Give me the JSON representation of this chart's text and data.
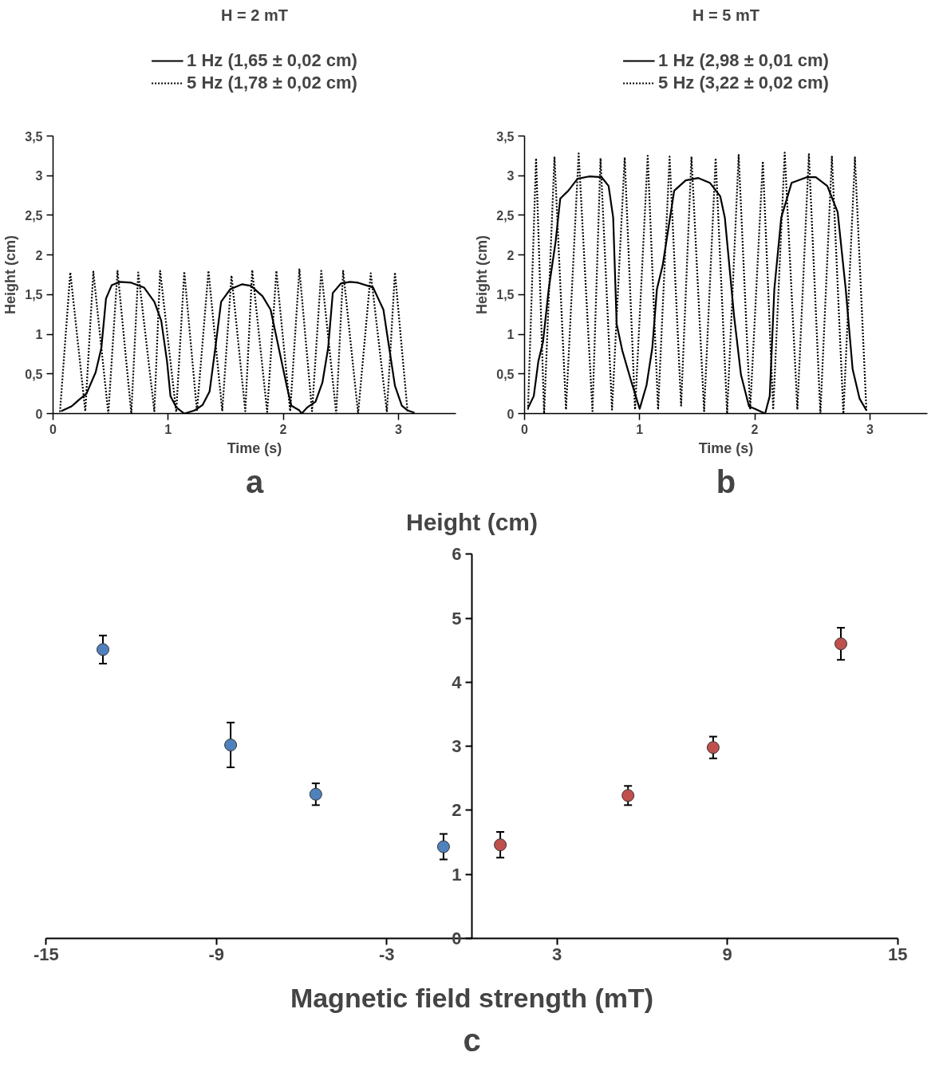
{
  "chart_data": [
    {
      "type": "line",
      "title": "H = 2 mT",
      "xlabel": "Time (s)",
      "ylabel": "Height (cm)",
      "legend": "top",
      "annotations": [
        "a"
      ],
      "xlim": [
        0,
        3.5
      ],
      "ylim": [
        0,
        3.5
      ],
      "xticks": [
        0,
        1,
        2,
        3
      ],
      "yticks": [
        0,
        {
          "value": 0.5,
          "label": "0,5"
        },
        1,
        {
          "value": 1.5,
          "label": "1,5"
        },
        2,
        {
          "value": 2.5,
          "label": "2,5"
        },
        3,
        {
          "value": 3.5,
          "label": "3,5"
        }
      ],
      "series": [
        {
          "name": "1 Hz (1,65 ± 0,02 cm)",
          "color": "#000000",
          "line_style": "solid",
          "x": [
            0.07,
            0.16,
            0.23,
            0.29,
            0.37,
            0.42,
            0.46,
            0.51,
            0.58,
            0.68,
            0.79,
            0.88,
            0.94,
            0.99,
            1.02,
            1.07,
            1.14,
            1.23,
            1.3,
            1.36,
            1.41,
            1.46,
            1.54,
            1.64,
            1.72,
            1.82,
            1.89,
            1.95,
            2.03,
            2.07,
            2.14,
            2.16,
            2.21,
            2.28,
            2.34,
            2.39,
            2.43,
            2.5,
            2.58,
            2.65,
            2.78,
            2.87,
            2.92,
            2.97,
            3.03,
            3.08,
            3.14
          ],
          "values": [
            0.03,
            0.09,
            0.18,
            0.25,
            0.52,
            0.83,
            1.45,
            1.62,
            1.66,
            1.65,
            1.59,
            1.41,
            1.17,
            0.66,
            0.22,
            0.08,
            0,
            0.04,
            0.11,
            0.28,
            0.83,
            1.41,
            1.57,
            1.63,
            1.61,
            1.48,
            1.31,
            0.9,
            0.35,
            0.1,
            0.04,
            0,
            0.08,
            0.15,
            0.39,
            0.83,
            1.52,
            1.64,
            1.66,
            1.65,
            1.59,
            1.31,
            0.83,
            0.35,
            0.1,
            0.04,
            0.01
          ]
        },
        {
          "name": "5 Hz (1,78 ± 0,02 cm)",
          "color": "#000000",
          "line_style": "dotted",
          "x": [
            0.06,
            0.15,
            0.28,
            0.35,
            0.48,
            0.56,
            0.68,
            0.74,
            0.88,
            0.93,
            1.07,
            1.14,
            1.25,
            1.35,
            1.47,
            1.55,
            1.67,
            1.73,
            1.86,
            1.94,
            2.06,
            2.14,
            2.25,
            2.33,
            2.46,
            2.52,
            2.65,
            2.76,
            2.9,
            2.97,
            3.08
          ],
          "values": [
            0.02,
            1.78,
            0.03,
            1.79,
            0,
            1.8,
            0,
            1.78,
            0.03,
            1.8,
            0.02,
            1.79,
            0.03,
            1.8,
            0.03,
            1.74,
            0.03,
            1.81,
            0.02,
            1.8,
            0.03,
            1.82,
            0.03,
            1.8,
            0,
            1.8,
            0,
            1.77,
            0.02,
            1.78,
            0.02
          ]
        }
      ]
    },
    {
      "type": "line",
      "title": "H = 5 mT",
      "xlabel": "Time (s)",
      "ylabel": "Height (cm)",
      "legend": "top",
      "annotations": [
        "b"
      ],
      "xlim": [
        0,
        3.5
      ],
      "ylim": [
        0,
        3.5
      ],
      "xticks": [
        0,
        1,
        2,
        3
      ],
      "yticks": [
        0,
        {
          "value": 0.5,
          "label": "0,5"
        },
        1,
        {
          "value": 1.5,
          "label": "1,5"
        },
        2,
        {
          "value": 2.5,
          "label": "2,5"
        },
        3,
        {
          "value": 3.5,
          "label": "3,5"
        }
      ],
      "series": [
        {
          "name": "1 Hz (2,98 ± 0,01 cm)",
          "color": "#000000",
          "line_style": "solid",
          "x": [
            0.03,
            0.08,
            0.12,
            0.16,
            0.21,
            0.27,
            0.31,
            0.38,
            0.46,
            0.56,
            0.67,
            0.73,
            0.77,
            0.8,
            0.85,
            0.93,
            1.0,
            1.06,
            1.11,
            1.15,
            1.2,
            1.3,
            1.4,
            1.51,
            1.61,
            1.7,
            1.74,
            1.82,
            1.88,
            1.95,
            2.0,
            2.09,
            2.13,
            2.17,
            2.23,
            2.32,
            2.45,
            2.53,
            2.63,
            2.72,
            2.79,
            2.85,
            2.91,
            2.97
          ],
          "values": [
            0.07,
            0.22,
            0.66,
            0.9,
            1.57,
            2.17,
            2.71,
            2.81,
            2.96,
            2.99,
            2.98,
            2.87,
            2.47,
            1.13,
            0.79,
            0.39,
            0.06,
            0.36,
            0.83,
            1.57,
            1.87,
            2.81,
            2.94,
            2.97,
            2.91,
            2.74,
            2.47,
            1.23,
            0.49,
            0.09,
            0.06,
            0,
            0.22,
            1.57,
            2.47,
            2.91,
            2.98,
            2.98,
            2.87,
            2.54,
            1.57,
            0.56,
            0.19,
            0.04
          ]
        },
        {
          "name": "5 Hz (3,22 ± 0,02 cm)",
          "color": "#000000",
          "line_style": "dotted",
          "x": [
            0.03,
            0.1,
            0.17,
            0.26,
            0.36,
            0.47,
            0.59,
            0.66,
            0.76,
            0.87,
            0.96,
            1.07,
            1.16,
            1.26,
            1.36,
            1.45,
            1.56,
            1.66,
            1.76,
            1.86,
            1.96,
            2.07,
            2.16,
            2.26,
            2.37,
            2.47,
            2.57,
            2.67,
            2.77,
            2.87,
            2.97
          ],
          "values": [
            0.05,
            3.22,
            0,
            3.24,
            0.05,
            3.28,
            0.03,
            3.22,
            0.05,
            3.23,
            0.05,
            3.25,
            0.05,
            3.24,
            0.1,
            3.24,
            0.03,
            3.22,
            0,
            3.26,
            0.05,
            3.18,
            0.05,
            3.29,
            0.05,
            3.27,
            0,
            3.24,
            0,
            3.23,
            0.03
          ]
        }
      ]
    },
    {
      "type": "scatter",
      "xlabel": "Magnetic field strength (mT)",
      "ylabel": "Height (cm)",
      "annotations": [
        "c"
      ],
      "marker": "circle",
      "xlim": [
        -15,
        15
      ],
      "ylim": [
        0,
        6
      ],
      "xticks": [
        -15,
        -9,
        -3,
        3,
        9,
        15
      ],
      "yticks": [
        0,
        1,
        2,
        3,
        4,
        5,
        6
      ],
      "series": [
        {
          "color": "#4f81bd",
          "x": [
            -13,
            -8.5,
            -5.5,
            -1
          ],
          "values": [
            4.51,
            3.02,
            2.25,
            1.43
          ],
          "errors": [
            0.22,
            0.35,
            0.17,
            0.2
          ]
        },
        {
          "color": "#c0504d",
          "x": [
            1,
            5.5,
            8.5,
            13
          ],
          "values": [
            1.46,
            2.23,
            2.98,
            4.6
          ],
          "errors": [
            0.2,
            0.15,
            0.17,
            0.25
          ]
        }
      ]
    }
  ]
}
